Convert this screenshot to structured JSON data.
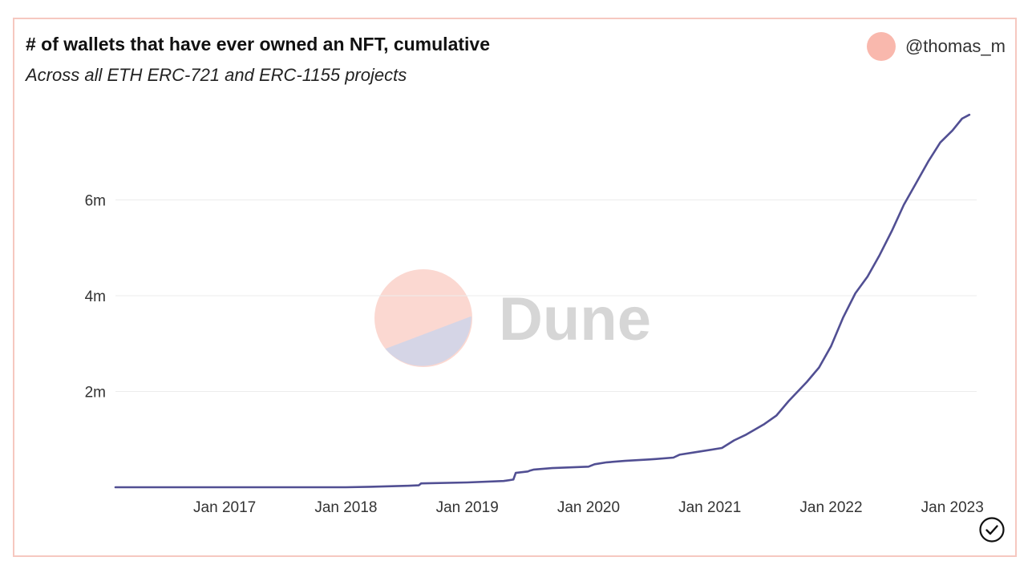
{
  "header": {
    "title": "# of wallets that have ever owned an NFT, cumulative",
    "subtitle": "Across all ETH ERC-721 and ERC-1155 projects",
    "author": "@thomas_m",
    "author_dot_color": "#f9b8ad"
  },
  "watermark": {
    "text": "Dune",
    "colors": {
      "top": "#fbd8d1",
      "bottom": "#d5d5e6",
      "text": "#d6d6d6"
    }
  },
  "chart_data": {
    "type": "line",
    "title": "# of wallets that have ever owned an NFT, cumulative",
    "subtitle": "Across all ETH ERC-721 and ERC-1155 projects",
    "xlabel": "",
    "ylabel": "",
    "grid": true,
    "x_range": [
      2016.1,
      2023.2
    ],
    "ylim": [
      0,
      7800000
    ],
    "y_ticks": [
      2000000,
      4000000,
      6000000
    ],
    "y_tick_labels": [
      "2m",
      "4m",
      "6m"
    ],
    "x_ticks": [
      2017.0,
      2018.0,
      2019.0,
      2020.0,
      2021.0,
      2022.0,
      2023.0
    ],
    "x_tick_labels": [
      "Jan 2017",
      "Jan 2018",
      "Jan 2019",
      "Jan 2020",
      "Jan 2021",
      "Jan 2022",
      "Jan 2023"
    ],
    "series": [
      {
        "name": "wallets",
        "color": "#514f93",
        "x": [
          2016.1,
          2016.5,
          2017.0,
          2017.5,
          2018.0,
          2018.2,
          2018.5,
          2018.6,
          2018.62,
          2019.0,
          2019.3,
          2019.38,
          2019.4,
          2019.5,
          2019.52,
          2019.55,
          2019.7,
          2020.0,
          2020.05,
          2020.15,
          2020.3,
          2020.5,
          2020.55,
          2020.7,
          2020.75,
          2020.9,
          2021.1,
          2021.2,
          2021.3,
          2021.45,
          2021.55,
          2021.65,
          2021.8,
          2021.9,
          2022.0,
          2022.1,
          2022.2,
          2022.3,
          2022.4,
          2022.5,
          2022.6,
          2022.7,
          2022.8,
          2022.9,
          2023.0,
          2023.08,
          2023.14
        ],
        "values": [
          0,
          0,
          0,
          0,
          0,
          10000,
          30000,
          40000,
          80000,
          100000,
          130000,
          160000,
          300000,
          330000,
          350000,
          370000,
          400000,
          430000,
          480000,
          520000,
          550000,
          580000,
          590000,
          620000,
          680000,
          740000,
          820000,
          980000,
          1100000,
          1320000,
          1500000,
          1800000,
          2200000,
          2500000,
          2950000,
          3550000,
          4050000,
          4400000,
          4850000,
          5350000,
          5900000,
          6350000,
          6800000,
          7200000,
          7450000,
          7700000,
          7780000
        ]
      }
    ]
  }
}
